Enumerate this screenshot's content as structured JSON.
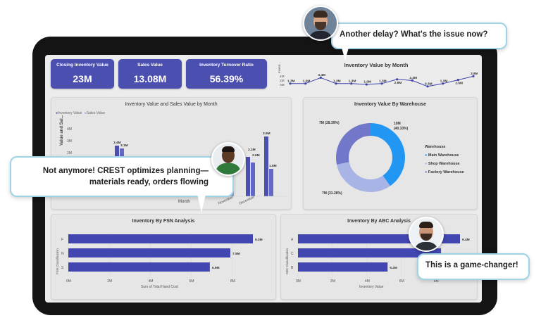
{
  "kpis": [
    {
      "title": "Closing Inventory Value",
      "value": "23M"
    },
    {
      "title": "Sales Value",
      "value": "13.08M"
    },
    {
      "title": "Inventory Turnover Ratio",
      "value": "56.39%"
    }
  ],
  "colors": {
    "accent": "#4b4fb0",
    "series_light": "#8fa3e8",
    "donut_main": "#2196f3",
    "donut_shop": "#a9b4e6",
    "donut_factory": "#7277c9",
    "bubble_border": "#9fd3e6"
  },
  "monthly_line": {
    "title": "Inventory Value by Month",
    "y_axis_label": "Invent...",
    "y_ticks": [
      "4M",
      "2M",
      "0M"
    ],
    "point_labels": [
      "1.3M",
      "1.3M",
      "3.4M",
      "1.3M",
      "1.3M",
      "1.0M",
      "1.3M",
      "2.8M",
      "2.4M",
      "0.3M",
      "1.3M",
      "2.6M",
      "3.9M"
    ]
  },
  "bar_month": {
    "title": "Inventory Value and Sales Value by Month",
    "legend": [
      "Inventory Value",
      "Sales Value"
    ],
    "y_axis_label": "Value and Sal...",
    "y_ticks": [
      "4M",
      "3M",
      "2M",
      "1M"
    ],
    "x_axis_label": "Month",
    "x_labels": [
      "November",
      "December"
    ],
    "labels_left": [
      "1.3M",
      "1.9M",
      "3.4M",
      "3.1M",
      "1.3M",
      "1.3M"
    ],
    "labels_right": [
      "1.4M",
      "2.8M",
      "2.6M",
      "2.2M",
      "2.6M",
      "3.9M",
      "1.8M"
    ]
  },
  "donut": {
    "title": "Inventory Value By Warehouse",
    "legend_title": "Warehouse",
    "legend": [
      "Main Warehouse",
      "Shop Warehouse",
      "Factory Warehouse"
    ],
    "label_main": "10M",
    "label_main_pct": "(40.33%)",
    "label_factory": "7M (28.39%)",
    "label_shop": "7M (31.28%)"
  },
  "chart_data": [
    {
      "type": "line",
      "title": "Inventory Value by Month",
      "ylabel": "Invent...",
      "values": [
        1.3,
        1.3,
        3.4,
        1.3,
        1.3,
        1.0,
        1.3,
        2.8,
        2.4,
        0.3,
        1.3,
        2.6,
        3.9
      ],
      "ylim": [
        0,
        4
      ]
    },
    {
      "type": "pie",
      "title": "Inventory Value By Warehouse",
      "categories": [
        "Main Warehouse",
        "Shop Warehouse",
        "Factory Warehouse"
      ],
      "values": [
        40.33,
        31.28,
        28.39
      ]
    },
    {
      "type": "bar",
      "title": "Inventory By FSN Analysis",
      "categories": [
        "F",
        "N",
        "S"
      ],
      "values": [
        9.0,
        7.9,
        6.9
      ],
      "xlabel": "Sum of Total Hand Cost",
      "ylabel": "FSN Classification",
      "xlim": [
        0,
        9
      ],
      "x_ticks": [
        "0M",
        "2M",
        "4M",
        "6M",
        "8M"
      ],
      "data_labels": [
        "9.0M",
        "7.9M",
        "6.9M"
      ]
    },
    {
      "type": "bar",
      "title": "Inventory By ABC Analysis",
      "categories": [
        "A",
        "C",
        "B"
      ],
      "values": [
        9.4,
        8.3,
        5.2
      ],
      "xlabel": "Inventory Value",
      "ylabel": "ABC Classification",
      "xlim": [
        0,
        9.4
      ],
      "x_ticks": [
        "0M",
        "2M",
        "4M",
        "6M",
        "8M"
      ],
      "data_labels": [
        "9.4M",
        "",
        "5.2M"
      ]
    }
  ],
  "bubbles": {
    "top": "Another delay? What's the issue now?",
    "left_line1": "Not anymore! CREST optimizes planning—",
    "left_line2": "materials ready, orders flowing",
    "right": "This is a game-changer!"
  }
}
